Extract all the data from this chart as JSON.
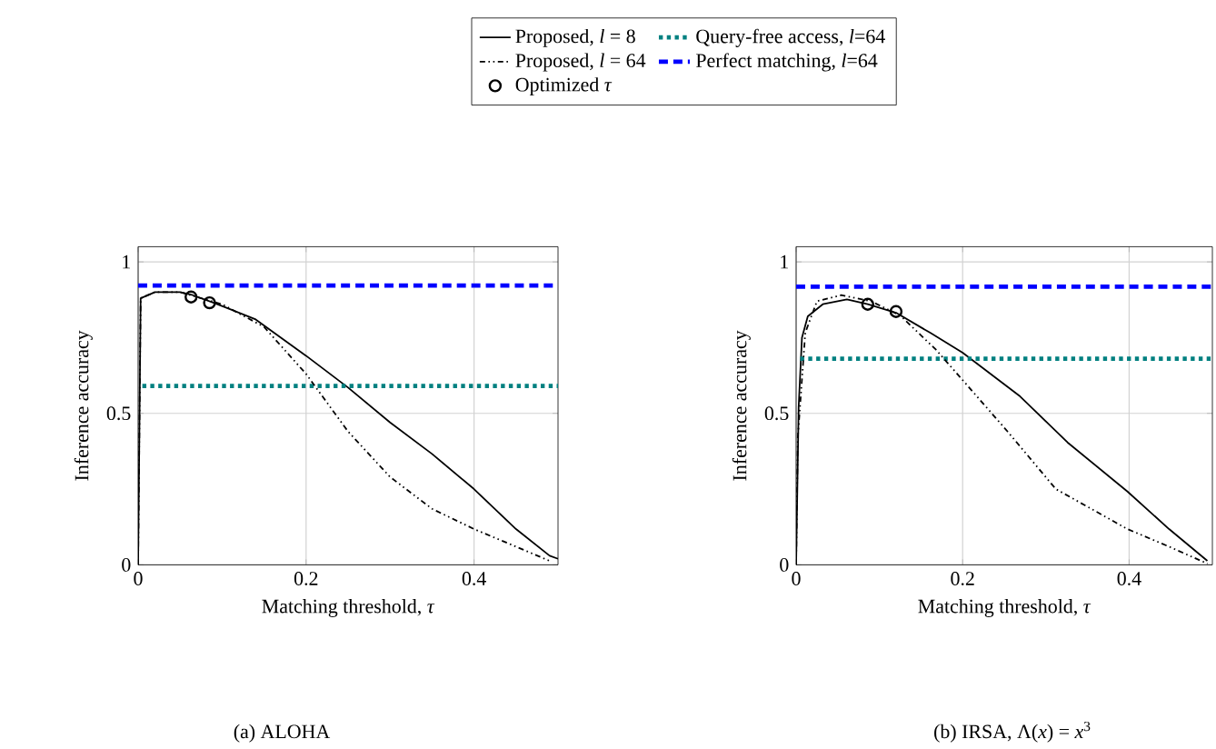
{
  "chart_data": [
    {
      "type": "line",
      "title": "(a) ALOHA",
      "xlabel": "Matching threshold, *τ*",
      "ylabel": "Inference accuracy",
      "xlim": [
        0,
        0.5
      ],
      "ylim": [
        0,
        1.05
      ],
      "xticks": [
        0,
        0.2,
        0.4
      ],
      "yticks": [
        0,
        0.5,
        1
      ],
      "grid": true,
      "legend": "top",
      "series": [
        {
          "name": "Proposed, *l* = 8",
          "color": "#000000",
          "line_style": "solid",
          "x": [
            0,
            0.003,
            0.02,
            0.05,
            0.065,
            0.09,
            0.14,
            0.2,
            0.25,
            0.3,
            0.35,
            0.4,
            0.45,
            0.49,
            0.5
          ],
          "values": [
            0,
            0.88,
            0.9,
            0.9,
            0.89,
            0.865,
            0.81,
            0.69,
            0.585,
            0.47,
            0.366,
            0.25,
            0.118,
            0.03,
            0.02
          ]
        },
        {
          "name": "Query-free access, *l*=64",
          "color": "#008080",
          "line_style": "dotted",
          "x": [
            0.005,
            0.5
          ],
          "values": [
            0.59,
            0.59
          ]
        },
        {
          "name": "Proposed, *l* = 64",
          "color": "#000000",
          "line_style": "dashdotted",
          "x": [
            0,
            0.003,
            0.02,
            0.05,
            0.1,
            0.15,
            0.2,
            0.25,
            0.3,
            0.35,
            0.4,
            0.45,
            0.49
          ],
          "values": [
            0,
            0.88,
            0.9,
            0.9,
            0.86,
            0.785,
            0.63,
            0.44,
            0.29,
            0.185,
            0.118,
            0.06,
            0.013
          ]
        },
        {
          "name": "Perfect matching, *l*=64",
          "color": "#0000ff",
          "line_style": "dashed",
          "x": [
            0,
            0.5
          ],
          "values": [
            0.922,
            0.922
          ]
        },
        {
          "name": "Optimized *τ*",
          "type": "scatter",
          "marker": "circle",
          "color": "#000000",
          "x": [
            0.063,
            0.085
          ],
          "values": [
            0.884,
            0.865
          ]
        }
      ]
    },
    {
      "type": "line",
      "title": "(b) IRSA, Λ(*x*) = *x*$^{3}$",
      "xlabel": "Matching threshold, *τ*",
      "ylabel": "Inference accuracy",
      "xlim": [
        0,
        0.5
      ],
      "ylim": [
        0,
        1.05
      ],
      "xticks": [
        0,
        0.2,
        0.4
      ],
      "yticks": [
        0,
        0.5,
        1
      ],
      "grid": true,
      "series": [
        {
          "color": "#000000",
          "line_style": "solid",
          "x": [
            0,
            0.003,
            0.007,
            0.014,
            0.032,
            0.061,
            0.086,
            0.12,
            0.161,
            0.2,
            0.269,
            0.326,
            0.398,
            0.448,
            0.494
          ],
          "values": [
            0,
            0.52,
            0.75,
            0.82,
            0.86,
            0.876,
            0.86,
            0.832,
            0.766,
            0.7,
            0.556,
            0.404,
            0.242,
            0.118,
            0.013
          ]
        },
        {
          "color": "#008080",
          "line_style": "dotted",
          "x": [
            0.005,
            0.5
          ],
          "values": [
            0.68,
            0.68
          ]
        },
        {
          "color": "#000000",
          "line_style": "dashdotted",
          "x": [
            0,
            0.002,
            0.011,
            0.025,
            0.054,
            0.09,
            0.125,
            0.168,
            0.2,
            0.254,
            0.312,
            0.398,
            0.448,
            0.494
          ],
          "values": [
            0,
            0.42,
            0.766,
            0.87,
            0.89,
            0.87,
            0.823,
            0.71,
            0.61,
            0.44,
            0.25,
            0.118,
            0.06,
            0.004
          ]
        },
        {
          "color": "#0000ff",
          "line_style": "dashed",
          "x": [
            0,
            0.5
          ],
          "values": [
            0.918,
            0.918
          ]
        },
        {
          "type": "scatter",
          "marker": "circle",
          "color": "#000000",
          "x": [
            0.086,
            0.12
          ],
          "values": [
            0.86,
            0.836
          ]
        }
      ]
    }
  ]
}
